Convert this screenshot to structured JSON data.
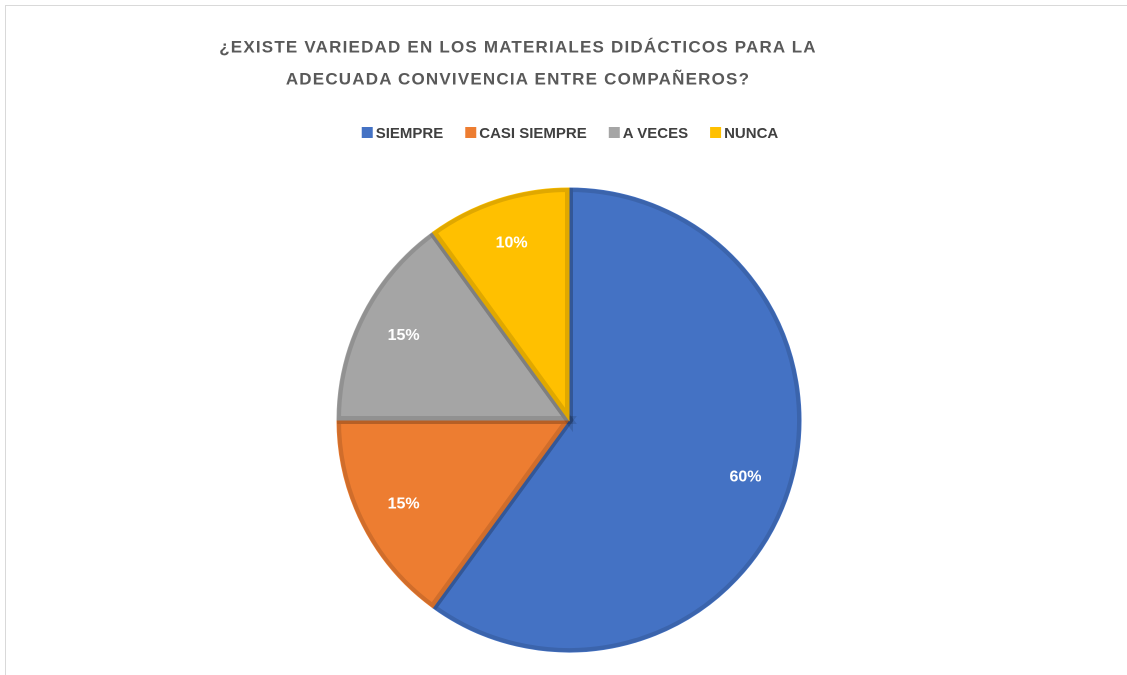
{
  "chart_data": {
    "type": "pie",
    "title": [
      "¿EXISTE VARIEDAD EN LOS MATERIALES DIDÁCTICOS PARA LA",
      "ADECUADA CONVIVENCIA ENTRE COMPAÑEROS?"
    ],
    "categories": [
      "SIEMPRE",
      "CASI SIEMPRE",
      "A VECES",
      "NUNCA"
    ],
    "values": [
      60,
      15,
      15,
      10
    ],
    "value_labels": [
      "60%",
      "15%",
      "15%",
      "10%"
    ],
    "colors": [
      "#4472c4",
      "#ed7d31",
      "#a5a5a5",
      "#ffc000"
    ],
    "legend": "top"
  }
}
